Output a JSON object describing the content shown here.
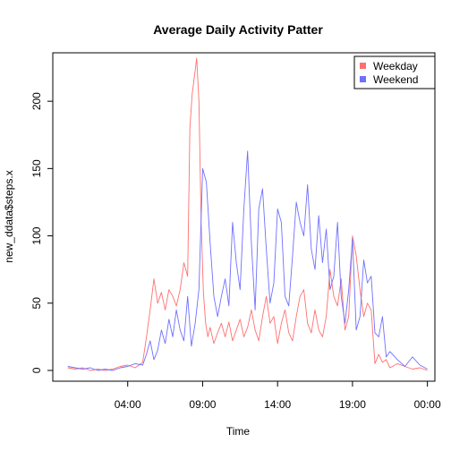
{
  "chart_data": {
    "type": "line",
    "title": "Average Daily Activity Patter",
    "xlabel": "Time",
    "ylabel": "new_ddata$steps.x",
    "x_unit": "hours of day",
    "xlim": [
      -1.0,
      24.5
    ],
    "ylim": [
      -8,
      236
    ],
    "x_ticks": [
      {
        "value": 4,
        "label": "04:00"
      },
      {
        "value": 9,
        "label": "09:00"
      },
      {
        "value": 14,
        "label": "14:00"
      },
      {
        "value": 19,
        "label": "19:00"
      },
      {
        "value": 24,
        "label": "00:00"
      }
    ],
    "y_ticks": [
      0,
      50,
      100,
      150,
      200
    ],
    "legend": {
      "position": "top-right",
      "entries": [
        "Weekday",
        "Weekend"
      ]
    },
    "colors": {
      "Weekday": "#ff7070",
      "Weekend": "#7070ff"
    },
    "series": [
      {
        "name": "Weekday",
        "x": [
          0,
          0.5,
          1,
          1.5,
          2,
          2.5,
          3,
          3.5,
          4,
          4.5,
          5,
          5.25,
          5.5,
          5.75,
          6,
          6.25,
          6.5,
          6.75,
          7,
          7.25,
          7.5,
          7.75,
          8,
          8.15,
          8.3,
          8.45,
          8.6,
          8.75,
          8.9,
          9.05,
          9.2,
          9.35,
          9.5,
          9.75,
          10,
          10.25,
          10.5,
          10.75,
          11,
          11.25,
          11.5,
          11.75,
          12,
          12.25,
          12.5,
          12.75,
          13,
          13.25,
          13.5,
          13.75,
          14,
          14.25,
          14.5,
          14.75,
          15,
          15.25,
          15.5,
          15.75,
          16,
          16.25,
          16.5,
          16.75,
          17,
          17.25,
          17.5,
          17.75,
          18,
          18.25,
          18.5,
          18.75,
          19,
          19.25,
          19.5,
          19.75,
          20,
          20.25,
          20.5,
          20.75,
          21,
          21.25,
          21.5,
          22,
          22.5,
          23,
          23.5,
          24
        ],
        "y": [
          2,
          1,
          2,
          0,
          1,
          0,
          1,
          3,
          4,
          2,
          6,
          25,
          45,
          68,
          50,
          58,
          45,
          60,
          55,
          48,
          60,
          80,
          70,
          180,
          205,
          218,
          232,
          200,
          110,
          58,
          35,
          25,
          32,
          20,
          28,
          35,
          25,
          36,
          22,
          30,
          38,
          25,
          32,
          45,
          30,
          22,
          40,
          55,
          35,
          40,
          20,
          35,
          45,
          28,
          22,
          40,
          55,
          60,
          35,
          28,
          45,
          30,
          25,
          40,
          75,
          55,
          48,
          68,
          30,
          40,
          100,
          85,
          60,
          40,
          50,
          45,
          5,
          12,
          6,
          8,
          2,
          5,
          3,
          1,
          2,
          0
        ]
      },
      {
        "name": "Weekend",
        "x": [
          0,
          0.5,
          1,
          1.5,
          2,
          2.5,
          3,
          3.5,
          4,
          4.5,
          5,
          5.25,
          5.5,
          5.75,
          6,
          6.25,
          6.5,
          6.75,
          7,
          7.25,
          7.5,
          7.75,
          8,
          8.25,
          8.5,
          8.75,
          9,
          9.25,
          9.5,
          9.75,
          10,
          10.25,
          10.5,
          10.75,
          11,
          11.25,
          11.5,
          11.75,
          12,
          12.25,
          12.5,
          12.75,
          13,
          13.25,
          13.5,
          13.75,
          14,
          14.25,
          14.5,
          14.75,
          15,
          15.25,
          15.5,
          15.75,
          16,
          16.25,
          16.5,
          16.75,
          17,
          17.25,
          17.5,
          17.75,
          18,
          18.25,
          18.5,
          18.75,
          19,
          19.25,
          19.5,
          19.75,
          20,
          20.25,
          20.5,
          20.75,
          21,
          21.25,
          21.5,
          22,
          22.5,
          23,
          23.5,
          24
        ],
        "y": [
          3,
          2,
          1,
          2,
          0,
          1,
          0,
          2,
          3,
          5,
          4,
          12,
          22,
          8,
          15,
          30,
          20,
          38,
          25,
          45,
          30,
          22,
          55,
          18,
          35,
          60,
          150,
          140,
          95,
          55,
          40,
          55,
          68,
          48,
          110,
          80,
          60,
          120,
          163,
          95,
          45,
          120,
          135,
          90,
          50,
          65,
          120,
          110,
          55,
          48,
          85,
          125,
          110,
          100,
          138,
          90,
          75,
          115,
          80,
          105,
          60,
          70,
          110,
          55,
          35,
          60,
          98,
          30,
          40,
          82,
          65,
          70,
          28,
          25,
          40,
          10,
          14,
          8,
          3,
          10,
          4,
          1
        ]
      }
    ]
  }
}
